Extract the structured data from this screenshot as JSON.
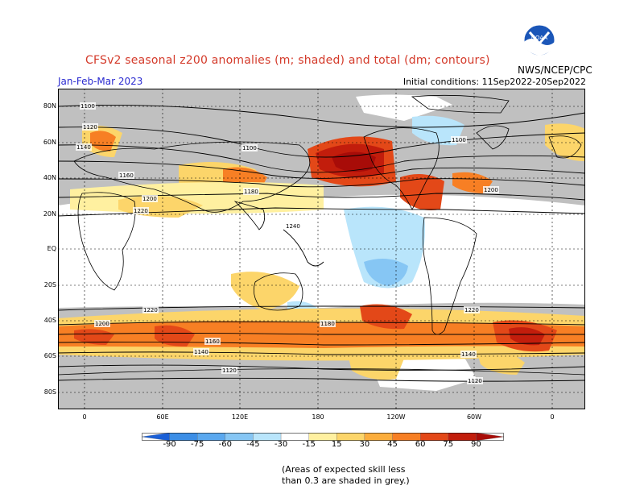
{
  "header": {
    "title": "CFSv2 seasonal z200 anomalies (m; shaded) and total (dm; contours)",
    "season": "Jan-Feb-Mar 2023",
    "initial_conditions": "Initial conditions: 11Sep2022-20Sep2022",
    "agency": "NWS/NCEP/CPC",
    "logo_text": "NOAA"
  },
  "axes": {
    "lat_labels": [
      "80N",
      "60N",
      "40N",
      "20N",
      "EQ",
      "20S",
      "40S",
      "60S",
      "80S"
    ],
    "lon_labels": [
      "0",
      "60E",
      "120E",
      "180",
      "120W",
      "60W",
      "0"
    ]
  },
  "contours": {
    "labels": [
      "1100",
      "1120",
      "1140",
      "1160",
      "1180",
      "1200",
      "1220",
      "1240"
    ]
  },
  "legend": {
    "ticks": [
      "-90",
      "-75",
      "-60",
      "-45",
      "-30",
      "-15",
      "15",
      "30",
      "45",
      "60",
      "75",
      "90"
    ],
    "colors": [
      "#1a5fd6",
      "#3c8ee6",
      "#5aa8ef",
      "#86c6f4",
      "#b9e5fb",
      "#ffffff",
      "#fff0a0",
      "#fcd56a",
      "#fbad3c",
      "#f77f24",
      "#e34818",
      "#c21d0c",
      "#a80c08"
    ]
  },
  "note": {
    "line1": "(Areas of expected skill less",
    "line2": "than 0.3 are shaded in grey.)"
  }
}
